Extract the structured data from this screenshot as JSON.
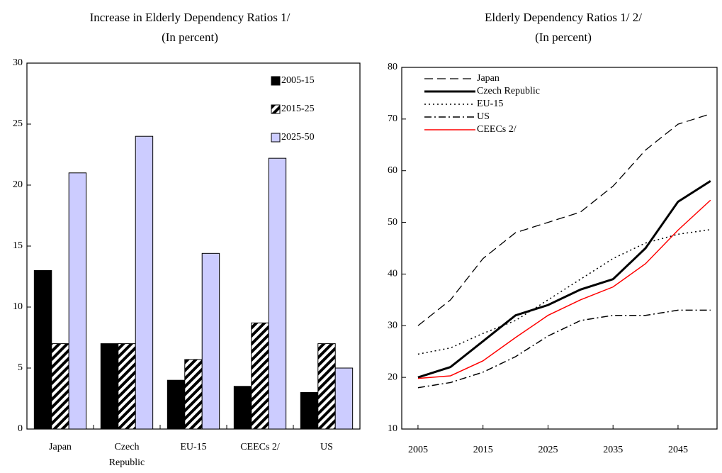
{
  "chart_data": [
    {
      "type": "bar",
      "title": "Increase in Elderly Dependency Ratios 1/",
      "subtitle": "(In percent)",
      "categories": [
        "Japan",
        "Czech Republic",
        "EU-15",
        "CEECs 2/",
        "US"
      ],
      "series": [
        {
          "name": "2005-15",
          "color": "#000000",
          "values": [
            13,
            7,
            4,
            3.5,
            3
          ]
        },
        {
          "name": "2015-25",
          "color": "#000000",
          "hatch": true,
          "values": [
            7,
            7,
            5.7,
            8.7,
            7
          ]
        },
        {
          "name": "2025-50",
          "color": "#ccccff",
          "values": [
            21,
            24,
            14.4,
            22.2,
            5
          ]
        }
      ],
      "ylim": [
        0,
        30
      ],
      "yticks": [
        0,
        5,
        10,
        15,
        20,
        25,
        30
      ],
      "legend": "upper right"
    },
    {
      "type": "line",
      "title": "Elderly Dependency Ratios 1/ 2/",
      "subtitle": "(In percent)",
      "x": [
        2005,
        2010,
        2015,
        2020,
        2025,
        2030,
        2035,
        2040,
        2045,
        2050
      ],
      "series": [
        {
          "name": "Japan",
          "color": "#000000",
          "dash": "dashed",
          "width": 1.3,
          "values": [
            30,
            35,
            43,
            48,
            50,
            52,
            57,
            64,
            69,
            71
          ]
        },
        {
          "name": "Czech Republic",
          "color": "#000000",
          "dash": "solid",
          "width": 3,
          "values": [
            20,
            22,
            27,
            32,
            34,
            37,
            39,
            45,
            54,
            58
          ]
        },
        {
          "name": "EU-15",
          "color": "#000000",
          "dash": "dotted",
          "width": 1.5,
          "values": [
            24.5,
            25.7,
            28.5,
            31,
            35,
            39,
            43,
            46,
            47.7,
            48.6
          ]
        },
        {
          "name": "US",
          "color": "#000000",
          "dash": "dashdot",
          "width": 1.5,
          "values": [
            18,
            19,
            21,
            24,
            28,
            31,
            32,
            32,
            33,
            33
          ]
        },
        {
          "name": "CEECs 2/",
          "color": "#ff0000",
          "dash": "solid",
          "width": 1.5,
          "values": [
            19.8,
            20.3,
            23.2,
            27.7,
            32,
            35,
            37.5,
            42,
            48.5,
            54.3
          ]
        }
      ],
      "xlim": [
        2002.5,
        2051
      ],
      "xticks": [
        2005,
        2015,
        2025,
        2035,
        2045
      ],
      "ylim": [
        10,
        80
      ],
      "yticks": [
        10,
        20,
        30,
        40,
        50,
        60,
        70,
        80
      ],
      "legend": "upper left"
    }
  ]
}
